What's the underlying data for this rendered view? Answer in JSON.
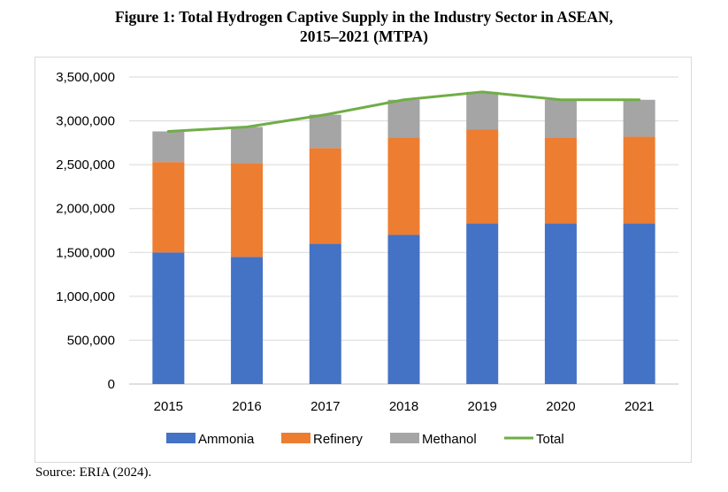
{
  "figure": {
    "title_line1": "Figure 1: Total Hydrogen Captive Supply in the Industry Sector in ASEAN,",
    "title_line2": "2015–2021 (MTPA)",
    "source": "Source: ERIA (2024)."
  },
  "chart_data": {
    "type": "bar",
    "stacked": true,
    "title": "Total Hydrogen Captive Supply in the Industry Sector in ASEAN, 2015–2021 (MTPA)",
    "xlabel": "",
    "ylabel": "",
    "categories": [
      "2015",
      "2016",
      "2017",
      "2018",
      "2019",
      "2020",
      "2021"
    ],
    "ylim": [
      0,
      3500000
    ],
    "yticks": [
      0,
      500000,
      1000000,
      1500000,
      2000000,
      2500000,
      3000000,
      3500000
    ],
    "ytick_labels": [
      "0",
      "500,000",
      "1,000,000",
      "1,500,000",
      "2,000,000",
      "2,500,000",
      "3,000,000",
      "3,500,000"
    ],
    "grid": true,
    "legend_position": "bottom",
    "series": [
      {
        "name": "Ammonia",
        "type": "bar",
        "color": "#4472c4",
        "values": [
          1500000,
          1450000,
          1600000,
          1700000,
          1830000,
          1830000,
          1830000
        ]
      },
      {
        "name": "Refinery",
        "type": "bar",
        "color": "#ed7d31",
        "values": [
          1030000,
          1070000,
          1090000,
          1110000,
          1070000,
          980000,
          990000
        ]
      },
      {
        "name": "Methanol",
        "type": "bar",
        "color": "#a5a5a5",
        "values": [
          350000,
          410000,
          380000,
          430000,
          430000,
          430000,
          420000
        ]
      },
      {
        "name": "Total",
        "type": "line",
        "color": "#70ad47",
        "values": [
          2880000,
          2930000,
          3070000,
          3240000,
          3330000,
          3240000,
          3240000
        ]
      }
    ]
  }
}
